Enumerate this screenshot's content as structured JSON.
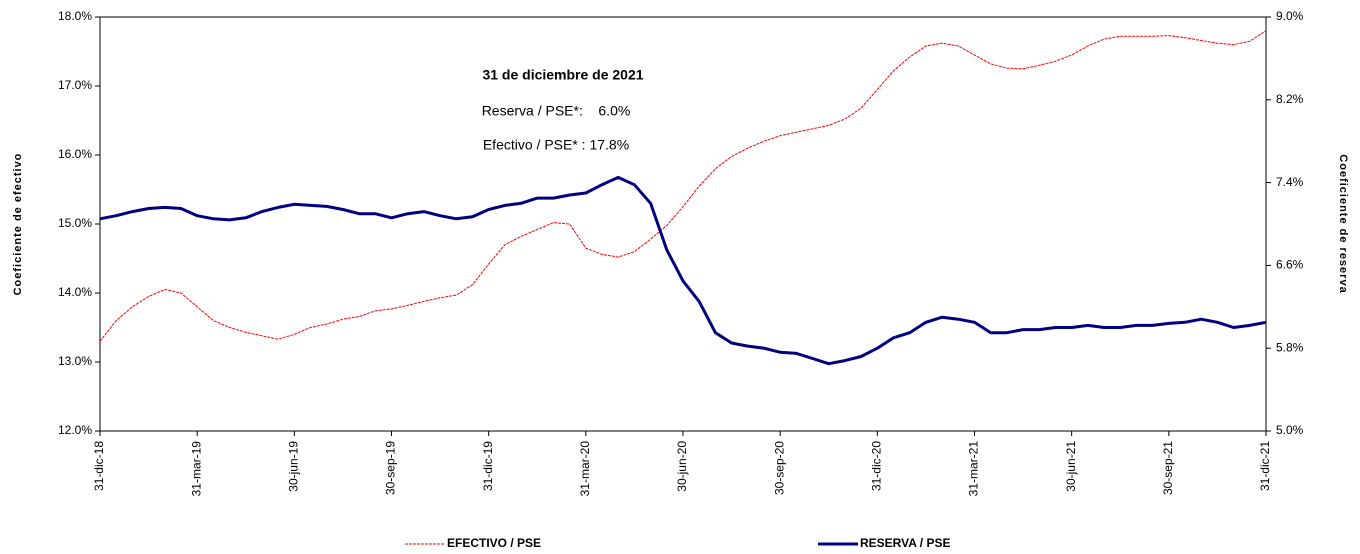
{
  "chart_data": {
    "type": "line",
    "categories": [
      "31-dic-18",
      null,
      null,
      null,
      null,
      null,
      "31-mar-19",
      null,
      null,
      null,
      null,
      null,
      "30-jun-19",
      null,
      null,
      null,
      null,
      null,
      "30-sep-19",
      null,
      null,
      null,
      null,
      null,
      "31-dic-19",
      null,
      null,
      null,
      null,
      null,
      "31-mar-20",
      null,
      null,
      null,
      null,
      null,
      "30-jun-20",
      null,
      null,
      null,
      null,
      null,
      "30-sep-20",
      null,
      null,
      null,
      null,
      null,
      "31-dic-20",
      null,
      null,
      null,
      null,
      null,
      "31-mar-21",
      null,
      null,
      null,
      null,
      null,
      "30-jun-21",
      null,
      null,
      null,
      null,
      null,
      "30-sep-21",
      null,
      null,
      null,
      null,
      null,
      "31-dic-21"
    ],
    "series": [
      {
        "name": "EFECTIVO / PSE",
        "color": "#ff0000",
        "axis": "y",
        "values": [
          13.3,
          13.6,
          13.8,
          13.95,
          14.05,
          14.0,
          13.8,
          13.6,
          13.5,
          13.43,
          13.38,
          13.33,
          13.4,
          13.5,
          13.55,
          13.62,
          13.66,
          13.74,
          13.77,
          13.82,
          13.88,
          13.93,
          13.97,
          14.12,
          14.42,
          14.7,
          14.82,
          14.92,
          15.02,
          15.0,
          14.65,
          14.56,
          14.52,
          14.6,
          14.78,
          14.98,
          15.25,
          15.55,
          15.8,
          15.98,
          16.1,
          16.2,
          16.28,
          16.33,
          16.38,
          16.43,
          16.52,
          16.68,
          16.95,
          17.22,
          17.42,
          17.58,
          17.62,
          17.58,
          17.45,
          17.32,
          17.26,
          17.25,
          17.3,
          17.36,
          17.45,
          17.58,
          17.68,
          17.72,
          17.72,
          17.72,
          17.73,
          17.7,
          17.66,
          17.62,
          17.6,
          17.65,
          17.8
        ]
      },
      {
        "name": "RESERVA / PSE",
        "color": "#000080",
        "axis": "y2",
        "values": [
          7.05,
          7.08,
          7.12,
          7.15,
          7.16,
          7.15,
          7.08,
          7.05,
          7.04,
          7.06,
          7.12,
          7.16,
          7.19,
          7.18,
          7.17,
          7.14,
          7.1,
          7.1,
          7.06,
          7.1,
          7.12,
          7.08,
          7.05,
          7.07,
          7.14,
          7.18,
          7.2,
          7.25,
          7.25,
          7.28,
          7.3,
          7.38,
          7.45,
          7.38,
          7.2,
          6.75,
          6.45,
          6.25,
          5.95,
          5.85,
          5.82,
          5.8,
          5.76,
          5.75,
          5.7,
          5.65,
          5.68,
          5.72,
          5.8,
          5.9,
          5.95,
          6.05,
          6.1,
          6.08,
          6.05,
          5.95,
          5.95,
          5.98,
          5.98,
          6.0,
          6.0,
          6.02,
          6.0,
          6.0,
          6.02,
          6.02,
          6.04,
          6.05,
          6.08,
          6.05,
          6.0,
          6.02,
          6.05
        ]
      }
    ],
    "ylim": [
      12,
      18
    ],
    "yticks": [
      {
        "value": 12,
        "label": "12.0%"
      },
      {
        "value": 13,
        "label": "13.0%"
      },
      {
        "value": 14,
        "label": "14.0%"
      },
      {
        "value": 15,
        "label": "15.0%"
      },
      {
        "value": 16,
        "label": "16.0%"
      },
      {
        "value": 17,
        "label": "17.0%"
      },
      {
        "value": 18,
        "label": "18.0%"
      }
    ],
    "y2lim": [
      5,
      9
    ],
    "y2ticks": [
      {
        "value": 5,
        "label": "5.0%"
      },
      {
        "value": 5.8,
        "label": "5.8%"
      },
      {
        "value": 6.6,
        "label": "6.6%"
      },
      {
        "value": 7.4,
        "label": "7.4%"
      },
      {
        "value": 8.2,
        "label": "8.2%"
      },
      {
        "value": 9,
        "label": "9.0%"
      }
    ],
    "ylabel": "Coeficiente de efectivo",
    "y2label": "Coeficiente de reserva",
    "annotations": [
      "31 de diciembre de 2021",
      "Reserva / PSE*:    6.0%",
      "Efectivo / PSE* : 17.8%"
    ],
    "legend": "bottom"
  }
}
